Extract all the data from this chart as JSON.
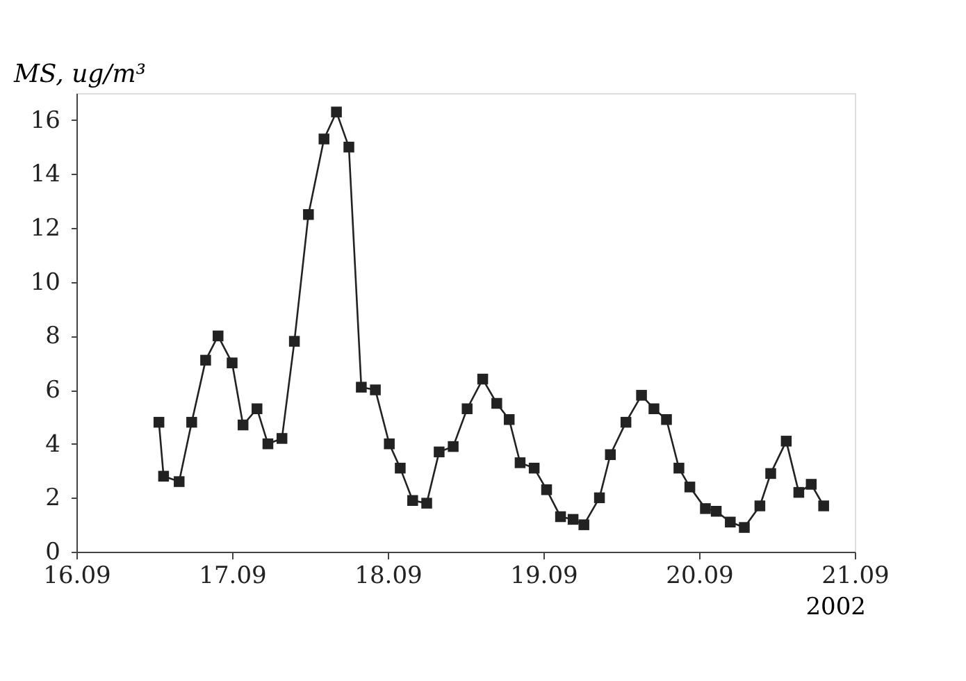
{
  "chart_data": {
    "type": "line",
    "ylabel": "MS, ug/m³",
    "xlabel": "2002",
    "x": [
      "2002-09-16T12:43",
      "2002-09-16T13:26",
      "2002-09-16T15:50",
      "2002-09-16T17:46",
      "2002-09-16T19:55",
      "2002-09-16T21:50",
      "2002-09-17T00:00",
      "2002-09-17T01:41",
      "2002-09-17T03:50",
      "2002-09-17T05:31",
      "2002-09-17T07:41",
      "2002-09-17T09:36",
      "2002-09-17T11:46",
      "2002-09-17T14:10",
      "2002-09-17T16:05",
      "2002-09-17T18:00",
      "2002-09-17T19:55",
      "2002-09-17T22:05",
      "2002-09-18T00:14",
      "2002-09-18T01:55",
      "2002-09-18T03:50",
      "2002-09-18T06:00",
      "2002-09-18T07:55",
      "2002-09-18T10:05",
      "2002-09-18T12:14",
      "2002-09-18T14:38",
      "2002-09-18T16:48",
      "2002-09-18T18:43",
      "2002-09-18T20:24",
      "2002-09-18T22:34",
      "2002-09-19T00:29",
      "2002-09-19T02:38",
      "2002-09-19T04:34",
      "2002-09-19T06:14",
      "2002-09-19T08:38",
      "2002-09-19T10:19",
      "2002-09-19T12:43",
      "2002-09-19T15:07",
      "2002-09-19T17:02",
      "2002-09-19T18:58",
      "2002-09-19T20:53",
      "2002-09-19T22:34",
      "2002-09-20T00:58",
      "2002-09-20T02:38",
      "2002-09-20T04:48",
      "2002-09-20T06:58",
      "2002-09-20T09:22",
      "2002-09-20T11:02",
      "2002-09-20T13:26",
      "2002-09-20T15:22",
      "2002-09-20T17:17",
      "2002-09-20T19:12"
    ],
    "series": [
      {
        "color": "#222222",
        "values": [
          4.8,
          2.8,
          2.6,
          4.8,
          7.1,
          8.0,
          7.0,
          4.7,
          5.3,
          4.0,
          4.2,
          7.8,
          12.5,
          15.3,
          16.3,
          15.0,
          6.1,
          6.0,
          4.0,
          3.1,
          1.9,
          1.8,
          3.7,
          3.9,
          5.3,
          6.4,
          5.5,
          4.9,
          3.3,
          3.1,
          2.3,
          1.3,
          1.2,
          1.0,
          2.0,
          3.6,
          4.8,
          5.8,
          5.3,
          4.9,
          3.1,
          2.4,
          1.6,
          1.5,
          1.1,
          0.9,
          1.7,
          2.9,
          4.1,
          2.2,
          2.5,
          1.7
        ]
      }
    ],
    "xlim": [
      "2002-09-16",
      "2002-09-21"
    ],
    "xticks": [
      {
        "value": "2002-09-16",
        "label": "16.09"
      },
      {
        "value": "2002-09-17",
        "label": "17.09"
      },
      {
        "value": "2002-09-18",
        "label": "18.09"
      },
      {
        "value": "2002-09-19",
        "label": "19.09"
      },
      {
        "value": "2002-09-20",
        "label": "20.09"
      },
      {
        "value": "2002-09-21",
        "label": "21.09"
      }
    ],
    "ylim": [
      0,
      17
    ],
    "yticks": [
      0,
      2,
      4,
      6,
      8,
      10,
      12,
      14,
      16
    ],
    "marker": "square",
    "line_style": "solid",
    "grid": false
  }
}
